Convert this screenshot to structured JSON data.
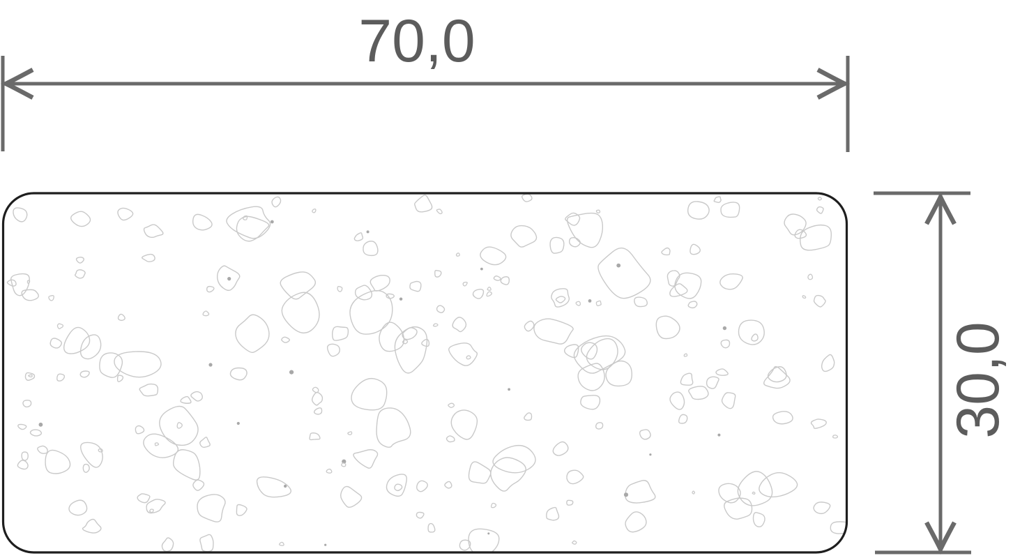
{
  "drawing": {
    "kind": "technical-dimension-drawing",
    "part": {
      "shape": "rounded-rectangle",
      "fill_pattern": "granulate-pebble-outlines"
    },
    "dimensions": {
      "width": {
        "label": "70,0",
        "value": 70.0
      },
      "height": {
        "label": "30,0",
        "value": 30.0
      }
    },
    "colors": {
      "background": "#ffffff",
      "dimension_line": "#6a6a6a",
      "label_text": "#5c5c5c",
      "part_outline": "#1e1e1e",
      "part_fill": "#ffffff",
      "texture_stroke": "#c9c9c9",
      "speck_fill": "#a8a8a8"
    },
    "texture": {
      "style": "granulate-pebble-outlines",
      "seed": 12,
      "large": 30,
      "medium": 62,
      "small": 74,
      "specks": 58
    }
  }
}
